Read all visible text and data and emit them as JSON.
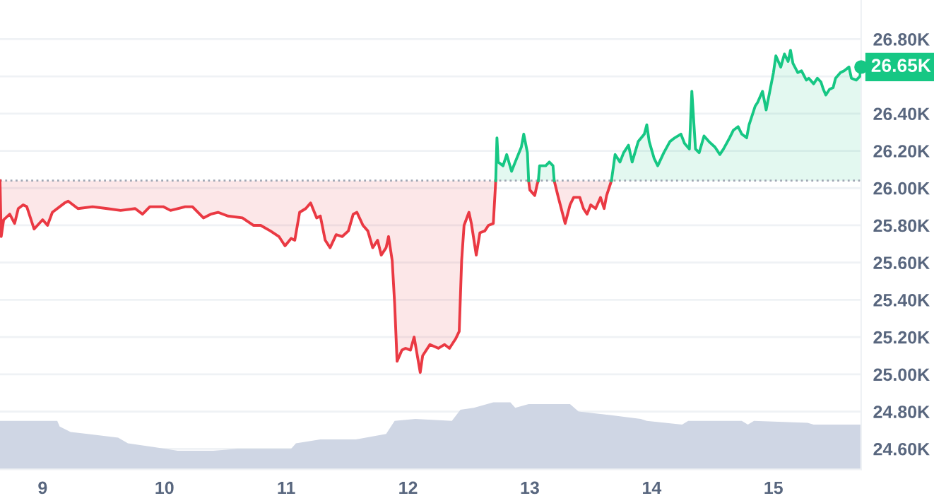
{
  "chart_data": {
    "type": "line",
    "xlim": [
      8.65,
      15.72
    ],
    "xticks": [
      9,
      10,
      11,
      12,
      13,
      14,
      15
    ],
    "ylim": [
      24.49,
      27.01
    ],
    "yticks": [
      {
        "value": 24.6,
        "label": "24.60K"
      },
      {
        "value": 24.8,
        "label": "24.80K"
      },
      {
        "value": 25.0,
        "label": "25.00K"
      },
      {
        "value": 25.2,
        "label": "25.20K"
      },
      {
        "value": 25.4,
        "label": "25.40K"
      },
      {
        "value": 25.6,
        "label": "25.60K"
      },
      {
        "value": 25.8,
        "label": "25.80K"
      },
      {
        "value": 26.0,
        "label": "26.00K"
      },
      {
        "value": 26.2,
        "label": "26.20K"
      },
      {
        "value": 26.4,
        "label": "26.40K"
      },
      {
        "value": 26.6,
        "label": null
      },
      {
        "value": 26.8,
        "label": "26.80K"
      }
    ],
    "grid": "y",
    "legend": false,
    "marker": "none",
    "line_style": "solid",
    "ref_lines": [
      {
        "axis": "y",
        "value": 26.04,
        "label": null,
        "color": "#a0a7b4",
        "line_style": "dotted"
      }
    ],
    "annotations": [
      {
        "text": "26.65K",
        "x": 15.72,
        "y": 26.65
      }
    ],
    "series": [
      {
        "type": "area",
        "color": "#cfd6e4",
        "x": [
          8.65,
          9.12,
          9.14,
          9.23,
          9.37,
          9.62,
          9.7,
          9.91,
          10.11,
          10.4,
          10.6,
          11.04,
          11.08,
          11.28,
          11.57,
          11.82,
          11.89,
          12.06,
          12.36,
          12.43,
          12.54,
          12.7,
          12.84,
          12.88,
          12.99,
          13.33,
          13.4,
          13.67,
          13.91,
          13.96,
          14.25,
          14.3,
          14.74,
          14.79,
          14.84,
          15.28,
          15.33,
          15.65,
          15.72
        ],
        "values": [
          24.75,
          24.75,
          24.72,
          24.69,
          24.68,
          24.66,
          24.63,
          24.61,
          24.59,
          24.59,
          24.6,
          24.6,
          24.63,
          24.65,
          24.65,
          24.68,
          24.75,
          24.76,
          24.75,
          24.81,
          24.82,
          24.85,
          24.85,
          24.82,
          24.84,
          24.84,
          24.8,
          24.78,
          24.76,
          24.75,
          24.73,
          24.75,
          24.75,
          24.73,
          24.75,
          24.74,
          24.73,
          24.73,
          24.73
        ]
      },
      {
        "color": "#ea3943",
        "x": [
          8.65,
          8.66,
          8.68,
          8.73,
          8.77,
          8.8,
          8.84,
          8.87,
          8.93,
          9.0,
          9.04,
          9.08,
          9.18,
          9.21,
          9.29,
          9.41,
          9.53,
          9.64,
          9.76,
          9.82,
          9.88,
          9.99,
          10.05,
          10.17,
          10.23,
          10.32,
          10.38,
          10.44,
          10.52,
          10.64,
          10.73,
          10.79,
          10.87,
          10.94,
          10.99,
          11.04,
          11.07,
          11.11,
          11.16,
          11.2,
          11.25,
          11.28,
          11.32,
          11.36,
          11.41,
          11.46,
          11.51,
          11.55,
          11.58,
          11.63,
          11.67,
          11.71,
          11.75,
          11.78,
          11.82,
          11.84,
          11.87,
          11.89,
          11.91,
          11.95,
          11.98,
          12.02,
          12.05,
          12.1,
          12.12,
          12.18,
          12.25,
          12.3,
          12.34,
          12.39,
          12.42,
          12.44,
          12.46,
          12.5,
          12.52,
          12.56,
          12.59,
          12.63,
          12.66,
          12.7,
          12.72,
          12.85,
          12.99,
          13.0,
          13.04,
          13.06,
          13.07,
          13.13,
          13.2,
          13.23,
          13.27,
          13.29,
          13.33,
          13.36,
          13.41,
          13.44,
          13.47,
          13.5,
          13.54,
          13.58,
          13.61,
          13.63,
          13.67
        ],
        "values": [
          26.04,
          25.74,
          25.83,
          25.86,
          25.81,
          25.89,
          25.91,
          25.9,
          25.78,
          25.83,
          25.8,
          25.87,
          25.92,
          25.93,
          25.89,
          25.9,
          25.89,
          25.88,
          25.89,
          25.86,
          25.9,
          25.9,
          25.88,
          25.9,
          25.9,
          25.84,
          25.86,
          25.87,
          25.85,
          25.84,
          25.8,
          25.8,
          25.77,
          25.74,
          25.69,
          25.73,
          25.72,
          25.87,
          25.89,
          25.92,
          25.84,
          25.85,
          25.72,
          25.68,
          25.75,
          25.74,
          25.77,
          25.86,
          25.87,
          25.8,
          25.77,
          25.68,
          25.72,
          25.64,
          25.68,
          25.74,
          25.61,
          25.38,
          25.07,
          25.13,
          25.14,
          25.13,
          25.2,
          25.01,
          25.1,
          25.16,
          25.14,
          25.16,
          25.14,
          25.19,
          25.23,
          25.61,
          25.8,
          25.87,
          25.81,
          25.64,
          25.76,
          25.77,
          25.8,
          25.81,
          26.04,
          null,
          26.04,
          25.99,
          25.96,
          26.02,
          26.04,
          null,
          26.04,
          25.96,
          25.86,
          25.81,
          25.91,
          25.95,
          25.95,
          25.89,
          25.86,
          25.91,
          25.89,
          25.95,
          25.89,
          25.96,
          26.04
        ]
      },
      {
        "color": "#16c784",
        "x": [
          12.72,
          12.73,
          12.74,
          12.78,
          12.81,
          12.85,
          12.88,
          12.93,
          12.95,
          12.98,
          12.99,
          13.03,
          13.07,
          13.08,
          13.13,
          13.16,
          13.19,
          13.2,
          13.43,
          13.67,
          13.7,
          13.74,
          13.77,
          13.81,
          13.84,
          13.89,
          13.94,
          13.96,
          13.98,
          14.02,
          14.05,
          14.1,
          14.15,
          14.19,
          14.24,
          14.27,
          14.31,
          14.33,
          14.36,
          14.39,
          14.43,
          14.47,
          14.52,
          14.56,
          14.59,
          14.64,
          14.67,
          14.71,
          14.74,
          14.78,
          14.8,
          14.85,
          14.87,
          14.91,
          14.94,
          15.0,
          15.02,
          15.06,
          15.09,
          15.12,
          15.14,
          15.16,
          15.2,
          15.23,
          15.27,
          15.29,
          15.33,
          15.36,
          15.39,
          15.41,
          15.43,
          15.46,
          15.49,
          15.51,
          15.55,
          15.58,
          15.62,
          15.64,
          15.68,
          15.71,
          15.72
        ],
        "values": [
          26.04,
          26.27,
          26.14,
          26.12,
          26.18,
          26.09,
          26.14,
          26.22,
          26.29,
          26.19,
          26.04,
          null,
          26.04,
          26.12,
          26.12,
          26.14,
          26.12,
          26.04,
          null,
          26.04,
          26.18,
          26.14,
          26.19,
          26.23,
          26.14,
          26.25,
          26.29,
          26.34,
          26.25,
          26.16,
          26.12,
          26.19,
          26.25,
          26.27,
          26.29,
          26.24,
          26.21,
          26.52,
          26.21,
          26.19,
          26.28,
          26.25,
          26.22,
          26.18,
          26.21,
          26.27,
          26.31,
          26.33,
          26.29,
          26.27,
          26.34,
          26.44,
          26.46,
          26.52,
          26.42,
          26.62,
          26.71,
          26.65,
          26.72,
          26.68,
          26.74,
          26.67,
          26.62,
          26.63,
          26.58,
          26.59,
          26.56,
          26.59,
          26.57,
          26.53,
          26.5,
          26.53,
          26.54,
          26.59,
          26.62,
          26.63,
          26.65,
          26.59,
          26.58,
          26.6,
          26.65
        ]
      }
    ]
  }
}
